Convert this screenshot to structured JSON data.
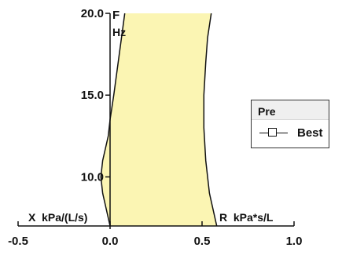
{
  "chart_data": {
    "type": "area",
    "y_axis": {
      "ticks": [
        10.0,
        15.0,
        20.0
      ],
      "tick_labels": [
        "10.0",
        "15.0",
        "20.0"
      ],
      "ylim": [
        7.0,
        20.0
      ],
      "label_top": "F",
      "unit_top": "Hz"
    },
    "x_axis": {
      "ticks": [
        -0.5,
        0.0,
        0.5,
        1.0
      ],
      "tick_labels": [
        "-0.5",
        "0.0",
        "0.5",
        "1.0"
      ],
      "xlim": [
        -0.5,
        1.0
      ]
    },
    "x_label_left": "X  kPa/(L/s)",
    "x_label_right": "R  kPa*s/L",
    "series": [
      {
        "role": "reactance",
        "points": [
          [
            0.0,
            7.0
          ],
          [
            -0.04,
            9.0
          ],
          [
            -0.05,
            10.0
          ],
          [
            -0.04,
            11.0
          ],
          [
            -0.01,
            12.5
          ],
          [
            0.0,
            13.5
          ],
          [
            0.02,
            15.0
          ],
          [
            0.05,
            17.5
          ],
          [
            0.08,
            20.0
          ]
        ]
      },
      {
        "role": "resistance",
        "points": [
          [
            0.58,
            7.0
          ],
          [
            0.54,
            9.0
          ],
          [
            0.52,
            11.0
          ],
          [
            0.51,
            13.0
          ],
          [
            0.51,
            15.0
          ],
          [
            0.52,
            17.0
          ],
          [
            0.53,
            18.5
          ],
          [
            0.55,
            20.0
          ]
        ]
      }
    ],
    "fill_color": "#fbf5b3",
    "line_color": "#111111"
  },
  "legend": {
    "title": "Pre",
    "entries": [
      {
        "label": "Best",
        "marker": "open-square"
      }
    ]
  }
}
